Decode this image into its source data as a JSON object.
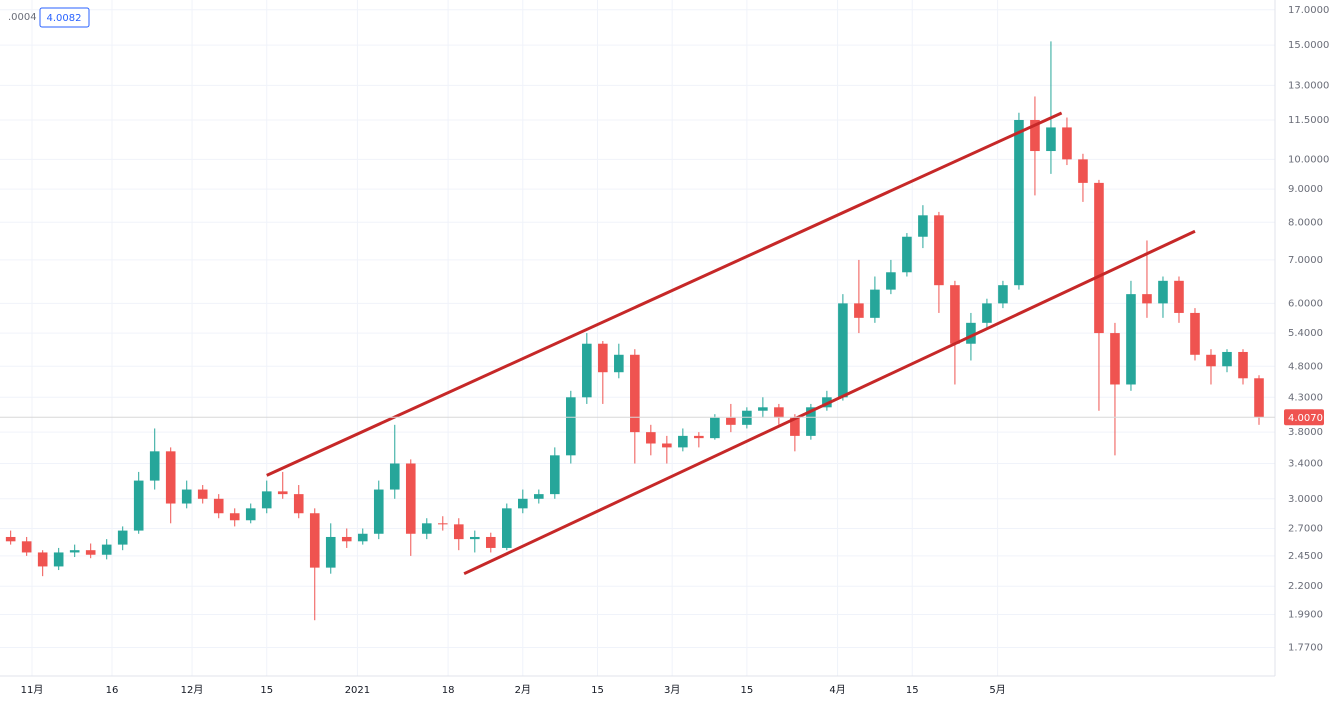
{
  "header": {
    "left": ".0004",
    "box": "4.0082"
  },
  "chart_data": {
    "type": "candlestick",
    "log_scale": true,
    "grid": true,
    "up_color": "#26a69a",
    "down_color": "#ef5350",
    "xlim": [
      "10-26",
      "06-22"
    ],
    "ylim": [
      1.6,
      17.6
    ],
    "yticks": [
      {
        "value": 1.77,
        "label": "1.7700"
      },
      {
        "value": 1.99,
        "label": "1.9900"
      },
      {
        "value": 2.2,
        "label": "2.2000"
      },
      {
        "value": 2.45,
        "label": "2.4500"
      },
      {
        "value": 2.7,
        "label": "2.7000"
      },
      {
        "value": 3,
        "label": "3.0000"
      },
      {
        "value": 3.4,
        "label": "3.4000"
      },
      {
        "value": 3.8,
        "label": "3.8000"
      },
      {
        "value": 4.3,
        "label": "4.3000"
      },
      {
        "value": 4.8,
        "label": "4.8000"
      },
      {
        "value": 5.4,
        "label": "5.4000"
      },
      {
        "value": 6,
        "label": "6.0000"
      },
      {
        "value": 7,
        "label": "7.0000"
      },
      {
        "value": 8,
        "label": "8.0000"
      },
      {
        "value": 9,
        "label": "9.0000"
      },
      {
        "value": 10,
        "label": "10.0000"
      },
      {
        "value": 11.5,
        "label": "11.5000"
      },
      {
        "value": 13,
        "label": "13.0000"
      },
      {
        "value": 15,
        "label": "15.0000"
      },
      {
        "value": 17,
        "label": "17.0000"
      }
    ],
    "xticks": [
      {
        "value": "11-01",
        "label": "11月"
      },
      {
        "value": "11-16",
        "label": "16"
      },
      {
        "value": "12-01",
        "label": "12月"
      },
      {
        "value": "12-15",
        "label": "15"
      },
      {
        "value": "01-01",
        "label": "2021"
      },
      {
        "value": "01-18",
        "label": "18"
      },
      {
        "value": "02-01",
        "label": "2月"
      },
      {
        "value": "02-15",
        "label": "15"
      },
      {
        "value": "03-01",
        "label": "3月"
      },
      {
        "value": "03-15",
        "label": "15"
      },
      {
        "value": "04-01",
        "label": "4月"
      },
      {
        "value": "04-15",
        "label": "15"
      },
      {
        "value": "05-01",
        "label": "5月"
      }
    ],
    "x": [
      "10-28",
      "10-31",
      "11-03",
      "11-06",
      "11-09",
      "11-12",
      "11-15",
      "11-18",
      "11-21",
      "11-24",
      "11-27",
      "11-30",
      "12-03",
      "12-06",
      "12-09",
      "12-12",
      "12-15",
      "12-18",
      "12-21",
      "12-24",
      "12-27",
      "12-30",
      "01-02",
      "01-05",
      "01-08",
      "01-11",
      "01-14",
      "01-17",
      "01-20",
      "01-23",
      "01-26",
      "01-29",
      "02-01",
      "02-04",
      "02-07",
      "02-10",
      "02-13",
      "02-16",
      "02-19",
      "02-22",
      "02-25",
      "02-28",
      "03-03",
      "03-06",
      "03-09",
      "03-12",
      "03-15",
      "03-18",
      "03-21",
      "03-24",
      "03-27",
      "03-30",
      "04-02",
      "04-05",
      "04-08",
      "04-11",
      "04-14",
      "04-17",
      "04-20",
      "04-23",
      "04-26",
      "04-29",
      "05-02",
      "05-05",
      "05-08",
      "05-11",
      "05-14",
      "05-17",
      "05-20",
      "05-23",
      "05-26",
      "05-29",
      "06-01",
      "06-04",
      "06-07",
      "06-10",
      "06-13",
      "06-16",
      "06-19"
    ],
    "open": [
      2.62,
      2.58,
      2.48,
      2.36,
      2.48,
      2.5,
      2.46,
      2.55,
      2.68,
      3.2,
      3.55,
      2.95,
      3.1,
      3.0,
      2.85,
      2.78,
      2.9,
      3.08,
      3.05,
      2.85,
      2.35,
      2.62,
      2.58,
      2.65,
      3.1,
      3.4,
      2.65,
      2.75,
      2.74,
      2.6,
      2.62,
      2.52,
      2.9,
      3.0,
      3.05,
      3.5,
      4.3,
      5.2,
      4.7,
      5.0,
      3.8,
      3.65,
      3.6,
      3.75,
      3.72,
      4.0,
      3.9,
      4.1,
      4.15,
      4.0,
      3.75,
      4.15,
      4.3,
      6.0,
      5.7,
      6.3,
      6.7,
      7.6,
      8.2,
      6.4,
      5.2,
      5.6,
      6.0,
      6.4,
      11.5,
      10.3,
      11.2,
      10.0,
      9.2,
      5.4,
      4.5,
      6.2,
      6.0,
      6.5,
      5.8,
      5.0,
      4.8,
      5.05,
      4.6
    ],
    "high": [
      2.68,
      2.62,
      2.5,
      2.52,
      2.55,
      2.56,
      2.6,
      2.72,
      3.3,
      3.85,
      3.6,
      3.2,
      3.15,
      3.05,
      2.9,
      2.95,
      3.2,
      3.3,
      3.15,
      2.9,
      2.75,
      2.7,
      2.7,
      3.2,
      3.9,
      3.45,
      2.8,
      2.82,
      2.8,
      2.68,
      2.66,
      2.95,
      3.1,
      3.1,
      3.6,
      4.4,
      5.4,
      5.25,
      5.2,
      5.1,
      3.9,
      3.75,
      3.85,
      3.8,
      4.05,
      4.2,
      4.15,
      4.3,
      4.2,
      4.05,
      4.2,
      4.4,
      6.2,
      7.0,
      6.6,
      7.0,
      7.7,
      8.5,
      8.3,
      6.5,
      5.8,
      6.1,
      6.5,
      11.8,
      12.5,
      15.2,
      11.6,
      10.2,
      9.3,
      5.6,
      6.5,
      7.5,
      6.6,
      6.6,
      5.9,
      5.1,
      5.1,
      5.1,
      4.65
    ],
    "low": [
      2.55,
      2.45,
      2.28,
      2.33,
      2.44,
      2.43,
      2.42,
      2.5,
      2.65,
      3.1,
      2.75,
      2.9,
      2.95,
      2.8,
      2.72,
      2.75,
      2.85,
      3.0,
      2.8,
      1.95,
      2.3,
      2.52,
      2.55,
      2.6,
      3.0,
      2.45,
      2.6,
      2.68,
      2.5,
      2.48,
      2.48,
      2.5,
      2.85,
      2.95,
      3.0,
      3.4,
      4.2,
      4.2,
      4.6,
      3.4,
      3.5,
      3.4,
      3.55,
      3.6,
      3.7,
      3.8,
      3.85,
      4.0,
      3.9,
      3.55,
      3.7,
      4.1,
      4.25,
      5.4,
      5.6,
      6.2,
      6.6,
      7.3,
      5.8,
      4.5,
      4.9,
      5.5,
      5.9,
      6.3,
      8.8,
      9.5,
      9.8,
      8.6,
      4.1,
      3.5,
      4.4,
      5.7,
      5.7,
      5.6,
      4.9,
      4.5,
      4.7,
      4.5,
      3.9
    ],
    "close": [
      2.58,
      2.48,
      2.36,
      2.48,
      2.5,
      2.46,
      2.55,
      2.68,
      3.2,
      3.55,
      2.95,
      3.1,
      3.0,
      2.85,
      2.78,
      2.9,
      3.08,
      3.05,
      2.85,
      2.35,
      2.62,
      2.58,
      2.65,
      3.1,
      3.4,
      2.65,
      2.75,
      2.74,
      2.6,
      2.62,
      2.52,
      2.9,
      3.0,
      3.05,
      3.5,
      4.3,
      5.2,
      4.7,
      5.0,
      3.8,
      3.65,
      3.6,
      3.75,
      3.72,
      4.0,
      3.9,
      4.1,
      4.15,
      4.0,
      3.75,
      4.15,
      4.3,
      6.0,
      5.7,
      6.3,
      6.7,
      7.6,
      8.2,
      6.4,
      5.2,
      5.6,
      6.0,
      6.4,
      11.5,
      10.3,
      11.2,
      10.0,
      9.2,
      5.4,
      4.5,
      6.2,
      6.0,
      6.5,
      5.8,
      5.0,
      4.8,
      5.05,
      4.6,
      4.007
    ],
    "trendlines": [
      {
        "color": "#c62828",
        "x": [
          "12-15",
          "05-13"
        ],
        "y": [
          3.26,
          11.79
        ]
      },
      {
        "color": "#c62828",
        "x": [
          "01-21",
          "06-07"
        ],
        "y": [
          2.3,
          7.75
        ]
      }
    ],
    "last_price": {
      "value": 4.007,
      "label": "4.0070"
    }
  }
}
